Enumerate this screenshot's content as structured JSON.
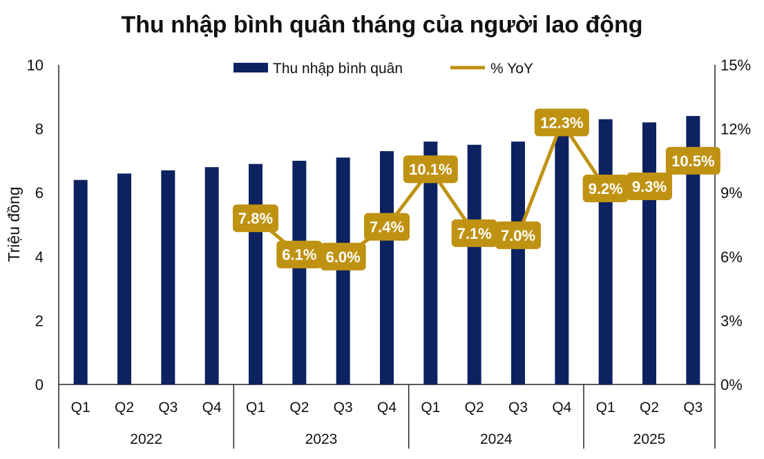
{
  "chart_data": {
    "type": "bar+line",
    "title": "Thu nhập bình quân tháng của người lao động",
    "ylabel": "Triệu đồng",
    "ylim": [
      0,
      10
    ],
    "yticks": [
      "0",
      "2",
      "4",
      "6",
      "8",
      "10"
    ],
    "y2lim": [
      0,
      15
    ],
    "y2ticks": [
      "0%",
      "3%",
      "6%",
      "9%",
      "12%",
      "15%"
    ],
    "legend_position": "top",
    "grid": false,
    "categories": [
      "Q1",
      "Q2",
      "Q3",
      "Q4",
      "Q1",
      "Q2",
      "Q3",
      "Q4",
      "Q1",
      "Q2",
      "Q3",
      "Q4",
      "Q1",
      "Q2",
      "Q3"
    ],
    "years": [
      {
        "label": "2022",
        "count": 4
      },
      {
        "label": "2023",
        "count": 4
      },
      {
        "label": "2024",
        "count": 4
      },
      {
        "label": "2025",
        "count": 3
      }
    ],
    "series": [
      {
        "name": "Thu nhập bình quân",
        "type": "bar",
        "axis": "left",
        "color": "#0d2260",
        "values": [
          6.4,
          6.6,
          6.7,
          6.8,
          6.9,
          7.0,
          7.1,
          7.3,
          7.6,
          7.5,
          7.6,
          8.2,
          8.3,
          8.2,
          8.4
        ]
      },
      {
        "name": "% YoY",
        "type": "line",
        "axis": "right",
        "color": "#bf9212",
        "values": [
          null,
          null,
          null,
          null,
          7.8,
          6.1,
          6.0,
          7.4,
          10.1,
          7.1,
          7.0,
          12.3,
          9.2,
          9.3,
          10.5
        ],
        "labels": [
          "",
          "",
          "",
          "",
          "7.8%",
          "6.1%",
          "6.0%",
          "7.4%",
          "10.1%",
          "7.1%",
          "7.0%",
          "12.3%",
          "9.2%",
          "9.3%",
          "10.5%"
        ]
      }
    ]
  }
}
